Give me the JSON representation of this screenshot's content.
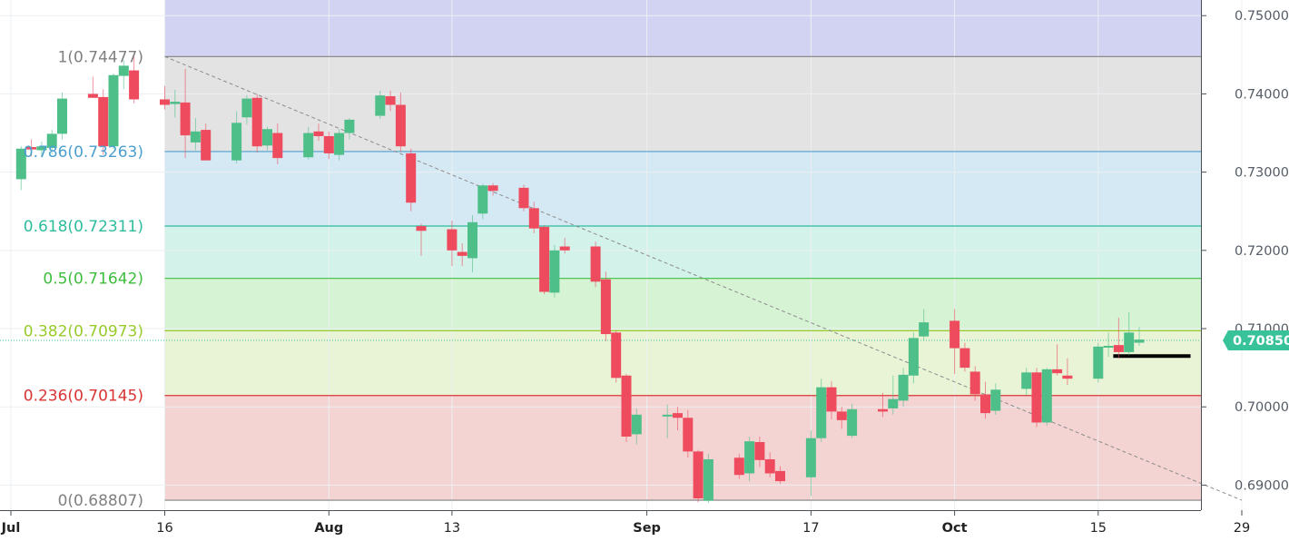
{
  "colors": {
    "up": "#4fbf8a",
    "down": "#ee4b5e",
    "grid": "#eceff2",
    "axis_text": "#555c66",
    "price_line": "#38c29a",
    "support_line": "#000000",
    "trend_line": "#8c8c8c"
  },
  "chart_data": {
    "type": "candlestick",
    "title": "",
    "xlabel": "",
    "ylabel": "",
    "ylim": [
      0.6868,
      0.752
    ],
    "y_ticks": [
      "0.75000",
      "0.74000",
      "0.73000",
      "0.72000",
      "0.71000",
      "0.70000",
      "0.69000"
    ],
    "x_ticks": [
      "Jul",
      "16",
      "Aug",
      "13",
      "Sep",
      "17",
      "Oct",
      "15",
      "29"
    ],
    "current_price": {
      "value": 0.7085,
      "label": "0.70850"
    },
    "fibonacci": {
      "levels": [
        {
          "ratio": "1",
          "price": 0.74477,
          "label": "1(0.74477)",
          "color": "#808080",
          "fill": "#e3e3e3"
        },
        {
          "ratio": "0.786",
          "price": 0.73263,
          "label": "0.786(0.73263)",
          "color": "#4a9fd0",
          "fill": "#d5e9f4"
        },
        {
          "ratio": "0.618",
          "price": 0.72311,
          "label": "0.618(0.72311)",
          "color": "#2dbd9e",
          "fill": "#d3f2ea"
        },
        {
          "ratio": "0.5",
          "price": 0.71642,
          "label": "0.5(0.71642)",
          "color": "#3ebe3e",
          "fill": "#d6f3d4"
        },
        {
          "ratio": "0.382",
          "price": 0.70973,
          "label": "0.382(0.70973)",
          "color": "#9acb2c",
          "fill": "#e9f4d6"
        },
        {
          "ratio": "0.236",
          "price": 0.70145,
          "label": "0.236(0.70145)",
          "color": "#d93535",
          "fill": "#f4d3d3"
        },
        {
          "ratio": "0",
          "price": 0.68807,
          "label": "0(0.68807)",
          "color": "#808080",
          "fill": null
        }
      ],
      "top_zone_fill": "#d2d2f3"
    },
    "trend_line": {
      "from": {
        "date": "Jul 16",
        "price": 0.74477
      },
      "to": {
        "date": "Oct 29",
        "price": 0.68807
      }
    },
    "support_line": {
      "from": "Oct 17",
      "to": "Oct 24",
      "price": 0.7065
    },
    "candles": [
      {
        "date": "Jun 29",
        "o": 0.7336,
        "h": 0.7343,
        "l": 0.7284,
        "c": 0.729
      },
      {
        "date": "Jul 2",
        "o": 0.7291,
        "h": 0.7333,
        "l": 0.7277,
        "c": 0.733
      },
      {
        "date": "Jul 3",
        "o": 0.7332,
        "h": 0.7342,
        "l": 0.732,
        "c": 0.7329
      },
      {
        "date": "Jul 4",
        "o": 0.7328,
        "h": 0.7339,
        "l": 0.7319,
        "c": 0.7333
      },
      {
        "date": "Jul 5",
        "o": 0.7331,
        "h": 0.7354,
        "l": 0.7323,
        "c": 0.7349
      },
      {
        "date": "Jul 6",
        "o": 0.7349,
        "h": 0.7402,
        "l": 0.7342,
        "c": 0.7394
      },
      {
        "date": "Jul 9",
        "o": 0.74,
        "h": 0.7422,
        "l": 0.7396,
        "c": 0.7395
      },
      {
        "date": "Jul 10",
        "o": 0.7396,
        "h": 0.7406,
        "l": 0.7322,
        "c": 0.7333
      },
      {
        "date": "Jul 11",
        "o": 0.7333,
        "h": 0.7426,
        "l": 0.733,
        "c": 0.7424
      },
      {
        "date": "Jul 12",
        "o": 0.7423,
        "h": 0.7443,
        "l": 0.7406,
        "c": 0.7436
      },
      {
        "date": "Jul 13",
        "o": 0.743,
        "h": 0.7448,
        "l": 0.7388,
        "c": 0.7393
      },
      {
        "date": "Jul 16",
        "o": 0.7393,
        "h": 0.741,
        "l": 0.738,
        "c": 0.7386
      },
      {
        "date": "Jul 17",
        "o": 0.7387,
        "h": 0.7405,
        "l": 0.737,
        "c": 0.739
      },
      {
        "date": "Jul 18",
        "o": 0.7389,
        "h": 0.7432,
        "l": 0.7318,
        "c": 0.7347
      },
      {
        "date": "Jul 19",
        "o": 0.7338,
        "h": 0.7369,
        "l": 0.7328,
        "c": 0.7352
      },
      {
        "date": "Jul 20",
        "o": 0.7354,
        "h": 0.7362,
        "l": 0.7316,
        "c": 0.7315
      },
      {
        "date": "Jul 23",
        "o": 0.7315,
        "h": 0.7378,
        "l": 0.7311,
        "c": 0.7363
      },
      {
        "date": "Jul 24",
        "o": 0.737,
        "h": 0.7398,
        "l": 0.7361,
        "c": 0.7394
      },
      {
        "date": "Jul 25",
        "o": 0.7395,
        "h": 0.74,
        "l": 0.7325,
        "c": 0.7333
      },
      {
        "date": "Jul 26",
        "o": 0.7334,
        "h": 0.7358,
        "l": 0.7328,
        "c": 0.7355
      },
      {
        "date": "Jul 27",
        "o": 0.735,
        "h": 0.7362,
        "l": 0.731,
        "c": 0.7318
      },
      {
        "date": "Jul 30",
        "o": 0.7319,
        "h": 0.7358,
        "l": 0.7316,
        "c": 0.735
      },
      {
        "date": "Jul 31",
        "o": 0.7352,
        "h": 0.7362,
        "l": 0.734,
        "c": 0.7346
      },
      {
        "date": "Aug 1",
        "o": 0.7346,
        "h": 0.7352,
        "l": 0.7317,
        "c": 0.7324
      },
      {
        "date": "Aug 2",
        "o": 0.7322,
        "h": 0.7355,
        "l": 0.7315,
        "c": 0.735
      },
      {
        "date": "Aug 3",
        "o": 0.735,
        "h": 0.7369,
        "l": 0.7342,
        "c": 0.7367
      },
      {
        "date": "Aug 6",
        "o": 0.7372,
        "h": 0.7404,
        "l": 0.7368,
        "c": 0.7398
      },
      {
        "date": "Aug 7",
        "o": 0.7397,
        "h": 0.7404,
        "l": 0.7378,
        "c": 0.7386
      },
      {
        "date": "Aug 8",
        "o": 0.7386,
        "h": 0.7402,
        "l": 0.7326,
        "c": 0.7333
      },
      {
        "date": "Aug 9",
        "o": 0.7324,
        "h": 0.733,
        "l": 0.725,
        "c": 0.7261
      },
      {
        "date": "Aug 10",
        "o": 0.7231,
        "h": 0.7234,
        "l": 0.7193,
        "c": 0.7225
      },
      {
        "date": "Aug 13",
        "o": 0.7227,
        "h": 0.7238,
        "l": 0.718,
        "c": 0.72
      },
      {
        "date": "Aug 14",
        "o": 0.7198,
        "h": 0.7209,
        "l": 0.718,
        "c": 0.7193
      },
      {
        "date": "Aug 15",
        "o": 0.719,
        "h": 0.7245,
        "l": 0.7172,
        "c": 0.7236
      },
      {
        "date": "Aug 16",
        "o": 0.7247,
        "h": 0.7285,
        "l": 0.724,
        "c": 0.7283
      },
      {
        "date": "Aug 17",
        "o": 0.7283,
        "h": 0.7286,
        "l": 0.727,
        "c": 0.7276
      },
      {
        "date": "Aug 20",
        "o": 0.728,
        "h": 0.7284,
        "l": 0.725,
        "c": 0.7254
      },
      {
        "date": "Aug 21",
        "o": 0.7254,
        "h": 0.7262,
        "l": 0.7222,
        "c": 0.7228
      },
      {
        "date": "Aug 22",
        "o": 0.723,
        "h": 0.7232,
        "l": 0.7144,
        "c": 0.7147
      },
      {
        "date": "Aug 23",
        "o": 0.7146,
        "h": 0.7207,
        "l": 0.714,
        "c": 0.72
      },
      {
        "date": "Aug 24",
        "o": 0.7205,
        "h": 0.7216,
        "l": 0.7196,
        "c": 0.72
      },
      {
        "date": "Aug 27",
        "o": 0.7205,
        "h": 0.7211,
        "l": 0.7153,
        "c": 0.716
      },
      {
        "date": "Aug 28",
        "o": 0.7163,
        "h": 0.7173,
        "l": 0.7084,
        "c": 0.7093
      },
      {
        "date": "Aug 29",
        "o": 0.7095,
        "h": 0.7098,
        "l": 0.7031,
        "c": 0.7037
      },
      {
        "date": "Aug 30",
        "o": 0.704,
        "h": 0.7042,
        "l": 0.6955,
        "c": 0.6962
      },
      {
        "date": "Aug 31",
        "o": 0.6965,
        "h": 0.6998,
        "l": 0.6952,
        "c": 0.699
      },
      {
        "date": "Sep 3",
        "o": 0.699,
        "h": 0.7003,
        "l": 0.696,
        "c": 0.699
      },
      {
        "date": "Sep 4",
        "o": 0.6992,
        "h": 0.7,
        "l": 0.697,
        "c": 0.6986
      },
      {
        "date": "Sep 5",
        "o": 0.6986,
        "h": 0.6996,
        "l": 0.6935,
        "c": 0.6943
      },
      {
        "date": "Sep 6",
        "o": 0.6943,
        "h": 0.6945,
        "l": 0.6878,
        "c": 0.6883
      },
      {
        "date": "Sep 7",
        "o": 0.688,
        "h": 0.694,
        "l": 0.6877,
        "c": 0.6933
      },
      {
        "date": "Sep 10",
        "o": 0.6935,
        "h": 0.694,
        "l": 0.6908,
        "c": 0.6913
      },
      {
        "date": "Sep 11",
        "o": 0.6915,
        "h": 0.6962,
        "l": 0.6905,
        "c": 0.6956
      },
      {
        "date": "Sep 12",
        "o": 0.6955,
        "h": 0.6962,
        "l": 0.6923,
        "c": 0.6932
      },
      {
        "date": "Sep 13",
        "o": 0.6933,
        "h": 0.6942,
        "l": 0.691,
        "c": 0.6915
      },
      {
        "date": "Sep 14",
        "o": 0.6918,
        "h": 0.6924,
        "l": 0.6902,
        "c": 0.6905
      },
      {
        "date": "Sep 17",
        "o": 0.691,
        "h": 0.697,
        "l": 0.6886,
        "c": 0.696
      },
      {
        "date": "Sep 18",
        "o": 0.696,
        "h": 0.7036,
        "l": 0.6955,
        "c": 0.7025
      },
      {
        "date": "Sep 19",
        "o": 0.7025,
        "h": 0.7033,
        "l": 0.6984,
        "c": 0.6994
      },
      {
        "date": "Sep 20",
        "o": 0.6994,
        "h": 0.7,
        "l": 0.6972,
        "c": 0.6983
      },
      {
        "date": "Sep 21",
        "o": 0.6963,
        "h": 0.7004,
        "l": 0.696,
        "c": 0.6997
      },
      {
        "date": "Sep 24",
        "o": 0.6997,
        "h": 0.7018,
        "l": 0.6987,
        "c": 0.6994
      },
      {
        "date": "Sep 25",
        "o": 0.6998,
        "h": 0.704,
        "l": 0.699,
        "c": 0.701
      },
      {
        "date": "Sep 26",
        "o": 0.7008,
        "h": 0.705,
        "l": 0.7,
        "c": 0.7041
      },
      {
        "date": "Sep 27",
        "o": 0.704,
        "h": 0.7095,
        "l": 0.703,
        "c": 0.7088
      },
      {
        "date": "Sep 28",
        "o": 0.709,
        "h": 0.7125,
        "l": 0.7085,
        "c": 0.7108
      },
      {
        "date": "Oct 1",
        "o": 0.711,
        "h": 0.7125,
        "l": 0.7042,
        "c": 0.7075
      },
      {
        "date": "Oct 2",
        "o": 0.7075,
        "h": 0.7082,
        "l": 0.7045,
        "c": 0.705
      },
      {
        "date": "Oct 3",
        "o": 0.7045,
        "h": 0.7052,
        "l": 0.7008,
        "c": 0.7016
      },
      {
        "date": "Oct 4",
        "o": 0.7016,
        "h": 0.7032,
        "l": 0.6985,
        "c": 0.6992
      },
      {
        "date": "Oct 5",
        "o": 0.6995,
        "h": 0.703,
        "l": 0.699,
        "c": 0.7022
      },
      {
        "date": "Oct 8",
        "o": 0.7023,
        "h": 0.705,
        "l": 0.7015,
        "c": 0.7044
      },
      {
        "date": "Oct 9",
        "o": 0.7044,
        "h": 0.705,
        "l": 0.6974,
        "c": 0.698
      },
      {
        "date": "Oct 10",
        "o": 0.698,
        "h": 0.705,
        "l": 0.6976,
        "c": 0.7048
      },
      {
        "date": "Oct 11",
        "o": 0.7048,
        "h": 0.708,
        "l": 0.704,
        "c": 0.7043
      },
      {
        "date": "Oct 12",
        "o": 0.704,
        "h": 0.7062,
        "l": 0.7028,
        "c": 0.7036
      },
      {
        "date": "Oct 15",
        "o": 0.7036,
        "h": 0.7082,
        "l": 0.7031,
        "c": 0.7077
      },
      {
        "date": "Oct 16",
        "o": 0.7078,
        "h": 0.7095,
        "l": 0.7064,
        "c": 0.7078
      },
      {
        "date": "Oct 17",
        "o": 0.7079,
        "h": 0.7114,
        "l": 0.7062,
        "c": 0.707
      },
      {
        "date": "Oct 18",
        "o": 0.707,
        "h": 0.7121,
        "l": 0.7066,
        "c": 0.7095
      },
      {
        "date": "Oct 19",
        "o": 0.7082,
        "h": 0.7102,
        "l": 0.7078,
        "c": 0.7086
      }
    ]
  }
}
